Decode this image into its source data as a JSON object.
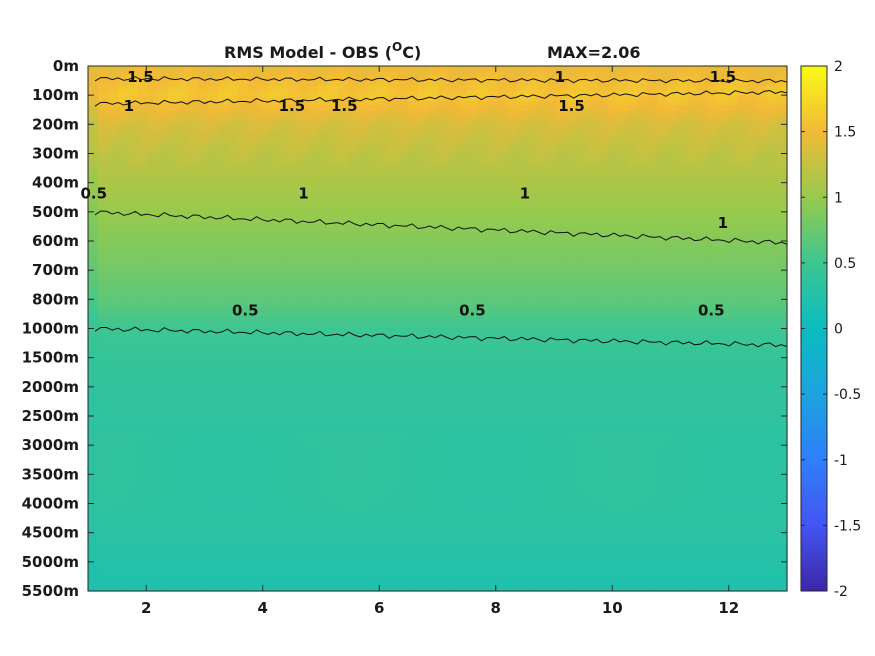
{
  "chart_data": {
    "type": "heatmap",
    "title": "RMS Model - OBS (",
    "title_superscript": "O",
    "title_unit": "C)",
    "max_label": "MAX=2.06",
    "x_range": [
      1,
      13
    ],
    "x_ticks": [
      "2",
      "4",
      "6",
      "8",
      "10",
      "12"
    ],
    "x_tick_values": [
      2,
      4,
      6,
      8,
      10,
      12
    ],
    "y_ticks": [
      "0m",
      "100m",
      "200m",
      "300m",
      "400m",
      "500m",
      "600m",
      "700m",
      "800m",
      "1000m",
      "1500m",
      "2000m",
      "2500m",
      "3000m",
      "3500m",
      "4000m",
      "4500m",
      "5000m",
      "5500m"
    ],
    "colorbar": {
      "range": [
        -2,
        2
      ],
      "ticks": [
        "2",
        "1.5",
        "1",
        "0.5",
        "0",
        "-0.5",
        "-1",
        "-1.5",
        "-2"
      ],
      "tick_values": [
        2,
        1.5,
        1,
        0.5,
        0,
        -0.5,
        -1,
        -1.5,
        -2
      ],
      "colormap": "parula"
    },
    "profile": {
      "depths": [
        "0m",
        "100m",
        "200m",
        "300m",
        "400m",
        "500m",
        "600m",
        "700m",
        "800m",
        "1000m",
        "1500m",
        "2000m",
        "2500m",
        "3000m",
        "3500m",
        "4000m",
        "4500m",
        "5000m",
        "5500m"
      ],
      "values": [
        1.45,
        1.6,
        1.35,
        1.22,
        1.12,
        1.0,
        0.9,
        0.8,
        0.68,
        0.5,
        0.42,
        0.38,
        0.36,
        0.34,
        0.34,
        0.33,
        0.31,
        0.26,
        0.2
      ]
    },
    "contour_levels": [
      0.5,
      1,
      1.5
    ],
    "contour_labels": [
      {
        "text": "1.5",
        "x": 1.9,
        "depth": "0m"
      },
      {
        "text": "1.5",
        "x": 5.4,
        "depth": "100m"
      },
      {
        "text": "1.5",
        "x": 4.5,
        "depth": "100m"
      },
      {
        "text": "1.5",
        "x": 9.3,
        "depth": "100m"
      },
      {
        "text": "1.5",
        "x": 11.9,
        "depth": "0m"
      },
      {
        "text": "1",
        "x": 9.1,
        "depth": "0m"
      },
      {
        "text": "1",
        "x": 1.7,
        "depth": "100m"
      },
      {
        "text": "0.5",
        "x": 1.1,
        "depth": "400m"
      },
      {
        "text": "1",
        "x": 4.7,
        "depth": "400m"
      },
      {
        "text": "1",
        "x": 8.5,
        "depth": "400m"
      },
      {
        "text": "1",
        "x": 11.9,
        "depth": "500m"
      },
      {
        "text": "0.5",
        "x": 3.7,
        "depth": "800m"
      },
      {
        "text": "0.5",
        "x": 7.6,
        "depth": "800m"
      },
      {
        "text": "0.5",
        "x": 11.7,
        "depth": "800m"
      }
    ]
  }
}
